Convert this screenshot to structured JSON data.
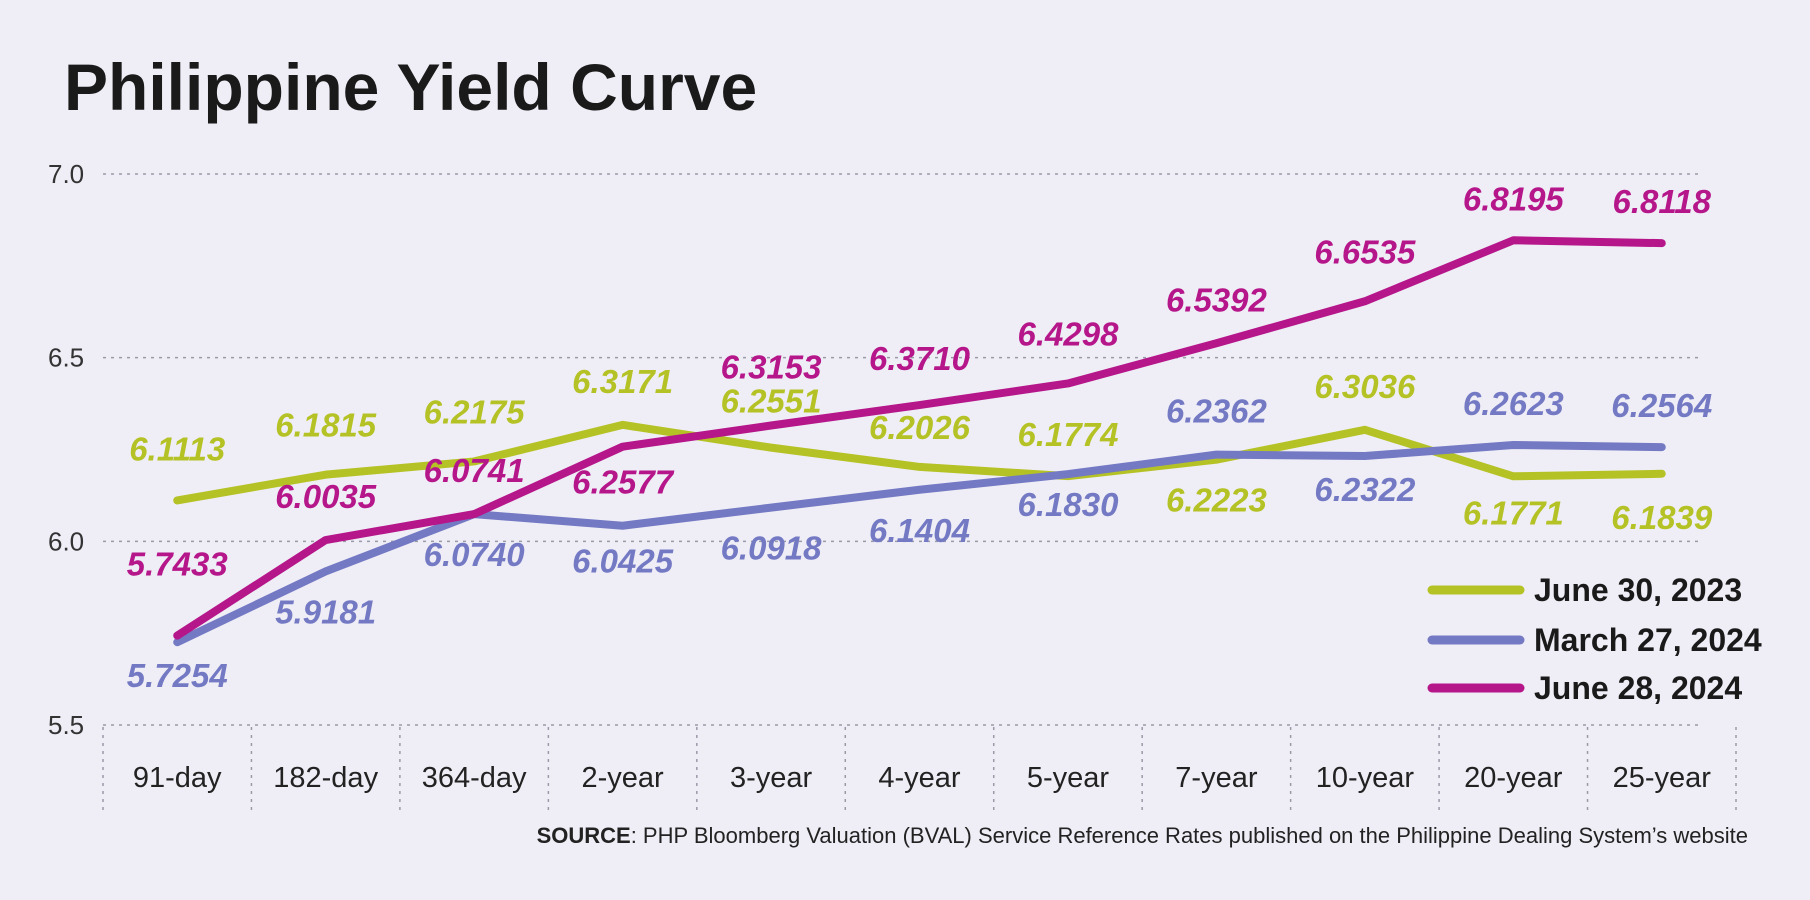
{
  "chart_data": {
    "type": "line",
    "title": "Philippine Yield Curve",
    "categories": [
      "91-day",
      "182-day",
      "364-day",
      "2-year",
      "3-year",
      "4-year",
      "5-year",
      "7-year",
      "10-year",
      "20-year",
      "25-year"
    ],
    "yticks": [
      "5.5",
      "6.0",
      "6.5",
      "7.0"
    ],
    "ylim": [
      5.5,
      7.0
    ],
    "grid": true,
    "legend_position": "bottom-right",
    "series": [
      {
        "name": "June 30, 2023",
        "color": "#b5c225",
        "values": [
          6.1113,
          6.1815,
          6.2175,
          6.3171,
          6.2551,
          6.2026,
          6.1774,
          6.2223,
          6.3036,
          6.1771,
          6.1839
        ],
        "labels": [
          "6.1113",
          "6.1815",
          "6.2175",
          "6.3171",
          "6.2551",
          "6.2026",
          "6.1774",
          "6.2223",
          "6.3036",
          "6.1771",
          "6.1839"
        ]
      },
      {
        "name": "March 27, 2024",
        "color": "#7479c4",
        "values": [
          5.7254,
          5.9181,
          6.074,
          6.0425,
          6.0918,
          6.1404,
          6.183,
          6.2362,
          6.2322,
          6.2623,
          6.2564
        ],
        "labels": [
          "5.7254",
          "5.9181",
          "6.0740",
          "6.0425",
          "6.0918",
          "6.1404",
          "6.1830",
          "6.2362",
          "6.2322",
          "6.2623",
          "6.2564"
        ]
      },
      {
        "name": "June 28, 2024",
        "color": "#b5168a",
        "values": [
          5.7433,
          6.0035,
          6.0741,
          6.2577,
          6.3153,
          6.371,
          6.4298,
          6.5392,
          6.6535,
          6.8195,
          6.8118
        ],
        "labels": [
          "5.7433",
          "6.0035",
          "6.0741",
          "6.2577",
          "6.3153",
          "6.3710",
          "6.4298",
          "6.5392",
          "6.6535",
          "6.8195",
          "6.8118"
        ]
      }
    ],
    "source_label": "SOURCE",
    "source_text": ": PHP Bloomberg Valuation (BVAL) Service Reference Rates published on the Philippine Dealing System’s website"
  }
}
